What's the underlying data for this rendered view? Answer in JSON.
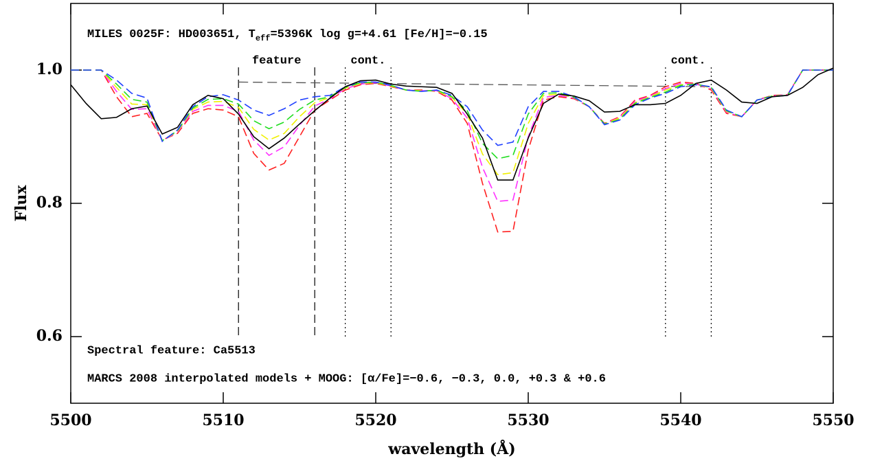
{
  "chart_data": {
    "type": "line",
    "title": [
      "MILES 0025F: HD003651, T",
      "eff",
      "=5396K log g=+4.61 [Fe/H]=−0.15"
    ],
    "annotations": [
      "Spectral feature: Ca5513",
      "MARCS 2008 interpolated models + MOOG: [α/Fe]=−0.6, −0.3, 0.0, +0.3 & +0.6"
    ],
    "xlabel": "wavelength (Å)",
    "ylabel": "Flux",
    "xlim": [
      5500,
      5550
    ],
    "ylim": [
      0.5,
      1.1
    ],
    "xticks": [
      5500,
      5510,
      5520,
      5530,
      5540,
      5550
    ],
    "yticks": [
      0.6,
      0.8,
      {
        "value": 1,
        "label": "1.0"
      }
    ],
    "regions": [
      {
        "label": "feature",
        "bounds": [
          5511,
          5516
        ],
        "style": "dashed"
      },
      {
        "label": "cont.",
        "bounds": [
          5518,
          5521
        ],
        "style": "dotted"
      },
      {
        "label": "cont.",
        "bounds": [
          5539,
          5542
        ],
        "style": "dotted"
      }
    ],
    "continuum": {
      "x": [
        5511,
        5542
      ],
      "y": [
        0.982,
        0.975
      ]
    },
    "x": [
      5500,
      5501,
      5502,
      5503,
      5504,
      5505,
      5506,
      5507,
      5508,
      5509,
      5510,
      5511,
      5512,
      5513,
      5514,
      5515,
      5516,
      5517,
      5518,
      5519,
      5520,
      5521,
      5522,
      5523,
      5524,
      5525,
      5526,
      5527,
      5528,
      5529,
      5530,
      5531,
      5532,
      5533,
      5534,
      5535,
      5536,
      5537,
      5538,
      5539,
      5540,
      5541,
      5542,
      5543,
      5544,
      5545,
      5546,
      5547,
      5548,
      5549,
      5550
    ],
    "series": [
      {
        "color": "#ff2020",
        "dashed": true,
        "values": [
          1.0,
          1.0,
          1.0,
          0.96,
          0.93,
          0.935,
          0.895,
          0.905,
          0.935,
          0.942,
          0.94,
          0.93,
          0.875,
          0.85,
          0.86,
          0.9,
          0.94,
          0.955,
          0.97,
          0.978,
          0.98,
          0.975,
          0.97,
          0.97,
          0.968,
          0.955,
          0.92,
          0.83,
          0.757,
          0.758,
          0.88,
          0.955,
          0.96,
          0.957,
          0.945,
          0.92,
          0.93,
          0.955,
          0.962,
          0.975,
          0.982,
          0.98,
          0.97,
          0.935,
          0.93,
          0.955,
          0.962,
          0.963,
          1.0,
          1.0,
          1.0
        ]
      },
      {
        "color": "#ff30ff",
        "dashed": true,
        "values": [
          1.0,
          1.0,
          1.0,
          0.968,
          0.941,
          0.942,
          0.894,
          0.907,
          0.938,
          0.947,
          0.947,
          0.938,
          0.895,
          0.872,
          0.885,
          0.917,
          0.946,
          0.957,
          0.972,
          0.979,
          0.981,
          0.976,
          0.97,
          0.969,
          0.969,
          0.957,
          0.928,
          0.854,
          0.803,
          0.805,
          0.9,
          0.959,
          0.962,
          0.958,
          0.945,
          0.919,
          0.929,
          0.953,
          0.961,
          0.972,
          0.98,
          0.979,
          0.972,
          0.937,
          0.93,
          0.955,
          0.961,
          0.963,
          1.0,
          1.0,
          1.0
        ]
      },
      {
        "color": "#f0f000",
        "dashed": true,
        "values": [
          1.0,
          1.0,
          1.0,
          0.974,
          0.949,
          0.948,
          0.894,
          0.908,
          0.941,
          0.952,
          0.953,
          0.944,
          0.911,
          0.895,
          0.905,
          0.93,
          0.951,
          0.959,
          0.973,
          0.98,
          0.981,
          0.976,
          0.97,
          0.969,
          0.969,
          0.959,
          0.934,
          0.874,
          0.843,
          0.846,
          0.92,
          0.962,
          0.964,
          0.959,
          0.945,
          0.919,
          0.928,
          0.951,
          0.96,
          0.97,
          0.978,
          0.979,
          0.973,
          0.938,
          0.93,
          0.955,
          0.961,
          0.962,
          1.0,
          1.0,
          1.0
        ]
      },
      {
        "color": "#20dd20",
        "dashed": true,
        "values": [
          1.0,
          1.0,
          1.0,
          0.979,
          0.956,
          0.952,
          0.894,
          0.909,
          0.943,
          0.956,
          0.957,
          0.949,
          0.924,
          0.912,
          0.922,
          0.941,
          0.955,
          0.96,
          0.974,
          0.981,
          0.982,
          0.977,
          0.97,
          0.968,
          0.97,
          0.96,
          0.939,
          0.89,
          0.867,
          0.872,
          0.934,
          0.965,
          0.966,
          0.959,
          0.945,
          0.919,
          0.926,
          0.95,
          0.959,
          0.967,
          0.977,
          0.979,
          0.974,
          0.939,
          0.93,
          0.955,
          0.961,
          0.962,
          1.0,
          1.0,
          1.0
        ]
      },
      {
        "color": "#2040ff",
        "dashed": true,
        "values": [
          1.0,
          1.0,
          1.0,
          0.985,
          0.965,
          0.958,
          0.893,
          0.91,
          0.945,
          0.96,
          0.963,
          0.955,
          0.94,
          0.932,
          0.942,
          0.955,
          0.96,
          0.962,
          0.975,
          0.982,
          0.982,
          0.977,
          0.97,
          0.968,
          0.97,
          0.962,
          0.945,
          0.91,
          0.887,
          0.892,
          0.945,
          0.968,
          0.968,
          0.96,
          0.945,
          0.918,
          0.925,
          0.948,
          0.958,
          0.965,
          0.975,
          0.978,
          0.975,
          0.94,
          0.93,
          0.955,
          0.96,
          0.962,
          1.0,
          1.0,
          1.0
        ]
      },
      {
        "color": "#000000",
        "dashed": false,
        "values": [
          0.978,
          0.95,
          0.927,
          0.929,
          0.942,
          0.946,
          0.904,
          0.914,
          0.948,
          0.962,
          0.957,
          0.934,
          0.9,
          0.882,
          0.898,
          0.919,
          0.939,
          0.958,
          0.975,
          0.984,
          0.985,
          0.979,
          0.976,
          0.975,
          0.974,
          0.965,
          0.934,
          0.898,
          0.835,
          0.835,
          0.898,
          0.95,
          0.964,
          0.961,
          0.954,
          0.937,
          0.938,
          0.948,
          0.948,
          0.95,
          0.962,
          0.98,
          0.985,
          0.97,
          0.952,
          0.95,
          0.96,
          0.962,
          0.974,
          0.993,
          1.003
        ]
      }
    ]
  }
}
